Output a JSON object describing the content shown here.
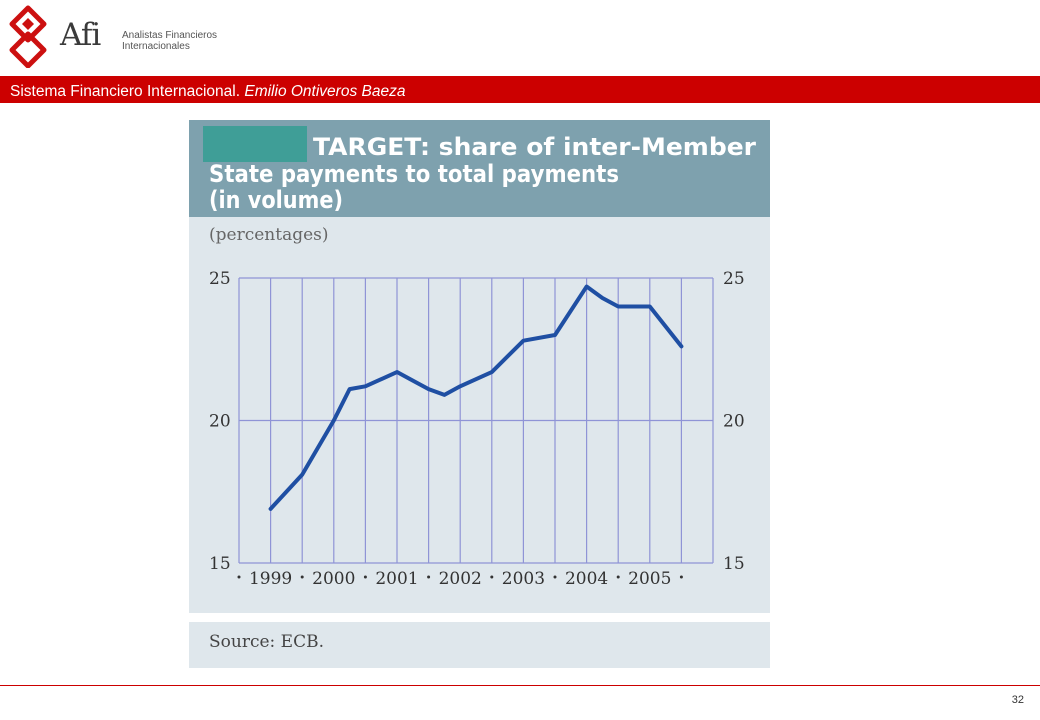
{
  "brand": {
    "name": "Afi",
    "subtitle_line1": "Analistas Financieros",
    "subtitle_line2": "Internacionales"
  },
  "header": {
    "title": "Sistema Financiero Internacional.",
    "author": "Emilio Ontiveros Baeza"
  },
  "footer": {
    "page_number": "32"
  },
  "colors": {
    "brand_red": "#cc0000",
    "chart_header": "#7ea1ae",
    "chart_background": "#dfe7ec",
    "grid": "#8f94d6",
    "line": "#1f4fa3",
    "teal_box": "#3f9e97"
  },
  "chart_data": {
    "type": "line",
    "title_lines": [
      "TARGET: share of inter-Member",
      "State payments to total payments",
      "(in volume)"
    ],
    "unit_label": "(percentages)",
    "source": "Source: ECB.",
    "x": [
      1999.0,
      1999.5,
      2000.0,
      2000.25,
      2000.5,
      2001.0,
      2001.5,
      2001.75,
      2002.0,
      2002.5,
      2003.0,
      2003.5,
      2004.0,
      2004.25,
      2004.5,
      2005.0,
      2005.5,
      2006.0
    ],
    "series": [
      {
        "values": [
          16.9,
          18.1,
          20.0,
          21.1,
          21.2,
          21.7,
          21.1,
          20.9,
          21.2,
          21.7,
          22.8,
          23.0,
          24.7,
          24.3,
          24.0,
          24.0,
          22.6,
          null
        ]
      }
    ],
    "categories": [
      "1999",
      "2000",
      "2001",
      "2002",
      "2003",
      "2004",
      "2005"
    ],
    "ylim": [
      15,
      25
    ],
    "yticks": [
      "25",
      "20",
      "15"
    ],
    "grid": true
  }
}
